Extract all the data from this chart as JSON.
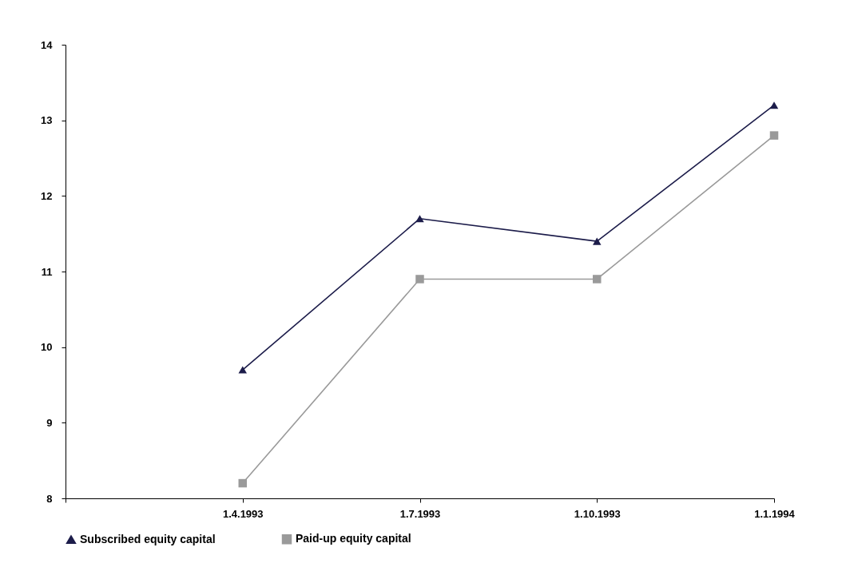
{
  "chart_data": {
    "type": "line",
    "categories": [
      null,
      "1.4.1993",
      "1.7.1993",
      "1.10.1993",
      "1.1.1994"
    ],
    "series": [
      {
        "name": "Subscribed equity capital",
        "color": "#1c1c4a",
        "values": [
          null,
          9.7,
          11.7,
          11.4,
          13.2
        ],
        "marker": "triangle"
      },
      {
        "name": "Paid-up equity capital",
        "color": "#9a9a9a",
        "values": [
          null,
          8.2,
          10.9,
          10.9,
          12.8
        ],
        "marker": "square"
      }
    ],
    "ylim": [
      8,
      14
    ],
    "yticks": [
      8,
      9,
      10,
      11,
      12,
      13,
      14
    ],
    "grid": false,
    "legend": "bottom"
  }
}
